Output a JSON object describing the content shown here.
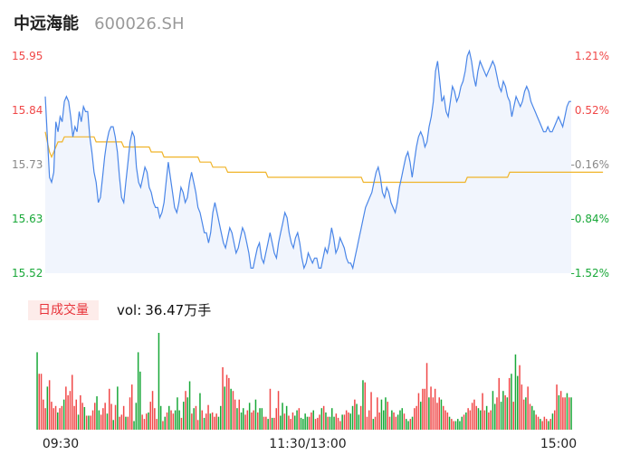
{
  "header": {
    "name": "中远海能",
    "code": "600026.SH"
  },
  "volume_panel": {
    "tag": "日成交量",
    "prefix": "vol:",
    "value": "36.47万手"
  },
  "colors": {
    "up": "#f04848",
    "down": "#18a838",
    "price_line": "#4a86e8",
    "avg_line": "#f0b429",
    "area": "#f1f5fd",
    "neutral": "#888888"
  },
  "chart_data": {
    "type": "line",
    "price_axis": [
      "15.95",
      "15.84",
      "15.73",
      "15.63",
      "15.52"
    ],
    "pct_axis": [
      "1.21%",
      "0.52%",
      "-0.16%",
      "-0.84%",
      "-1.52%"
    ],
    "ylim": [
      15.52,
      15.95
    ],
    "time_labels": [
      "09:30",
      "11:30/13:00",
      "15:00"
    ],
    "series": [
      {
        "values": [
          15.87,
          15.79,
          15.71,
          15.7,
          15.72,
          15.82,
          15.8,
          15.83,
          15.82,
          15.86,
          15.87,
          15.86,
          15.83,
          15.79,
          15.81,
          15.8,
          15.84,
          15.82,
          15.85,
          15.84,
          15.84,
          15.79,
          15.76,
          15.72,
          15.7,
          15.66,
          15.67,
          15.71,
          15.75,
          15.78,
          15.8,
          15.81,
          15.81,
          15.79,
          15.76,
          15.71,
          15.67,
          15.66,
          15.7,
          15.74,
          15.78,
          15.8,
          15.79,
          15.73,
          15.7,
          15.69,
          15.71,
          15.73,
          15.72,
          15.69,
          15.68,
          15.66,
          15.65,
          15.65,
          15.63,
          15.64,
          15.66,
          15.7,
          15.74,
          15.71,
          15.68,
          15.65,
          15.64,
          15.66,
          15.69,
          15.68,
          15.66,
          15.67,
          15.7,
          15.72,
          15.7,
          15.68,
          15.65,
          15.64,
          15.62,
          15.6,
          15.6,
          15.58,
          15.6,
          15.64,
          15.66,
          15.64,
          15.62,
          15.6,
          15.58,
          15.57,
          15.59,
          15.61,
          15.6,
          15.58,
          15.56,
          15.57,
          15.59,
          15.61,
          15.6,
          15.58,
          15.56,
          15.53,
          15.53,
          15.55,
          15.57,
          15.58,
          15.55,
          15.54,
          15.56,
          15.58,
          15.6,
          15.58,
          15.56,
          15.55,
          15.58,
          15.6,
          15.62,
          15.64,
          15.63,
          15.6,
          15.58,
          15.57,
          15.59,
          15.6,
          15.58,
          15.55,
          15.53,
          15.54,
          15.56,
          15.55,
          15.54,
          15.55,
          15.55,
          15.53,
          15.53,
          15.55,
          15.57,
          15.56,
          15.58,
          15.61,
          15.59,
          15.56,
          15.57,
          15.59,
          15.58,
          15.57,
          15.55,
          15.54,
          15.54,
          15.53,
          15.55,
          15.57,
          15.59,
          15.61,
          15.63,
          15.65,
          15.66,
          15.67,
          15.68,
          15.7,
          15.72,
          15.73,
          15.71,
          15.68,
          15.67,
          15.69,
          15.68,
          15.66,
          15.65,
          15.64,
          15.66,
          15.69,
          15.71,
          15.73,
          15.75,
          15.76,
          15.74,
          15.71,
          15.74,
          15.77,
          15.79,
          15.8,
          15.79,
          15.77,
          15.78,
          15.81,
          15.83,
          15.86,
          15.92,
          15.94,
          15.9,
          15.86,
          15.87,
          15.84,
          15.83,
          15.86,
          15.89,
          15.88,
          15.86,
          15.87,
          15.89,
          15.9,
          15.92,
          15.95,
          15.96,
          15.94,
          15.91,
          15.89,
          15.92,
          15.94,
          15.93,
          15.92,
          15.91,
          15.92,
          15.93,
          15.94,
          15.93,
          15.91,
          15.89,
          15.88,
          15.9,
          15.89,
          15.87,
          15.86,
          15.83,
          15.85,
          15.87,
          15.86,
          15.85,
          15.86,
          15.88,
          15.89,
          15.88,
          15.86,
          15.85,
          15.84,
          15.83,
          15.82,
          15.81,
          15.8,
          15.8,
          15.81,
          15.8,
          15.8,
          15.81,
          15.82,
          15.83,
          15.82,
          15.81,
          15.83,
          15.85,
          15.86,
          15.86
        ]
      },
      {
        "values": [
          15.8,
          15.78,
          15.76,
          15.75,
          15.76,
          15.77,
          15.78,
          15.78,
          15.78,
          15.79,
          15.79,
          15.79,
          15.79,
          15.79,
          15.79,
          15.79,
          15.79,
          15.79,
          15.79,
          15.79,
          15.79,
          15.79,
          15.79,
          15.79,
          15.78,
          15.78,
          15.78,
          15.78,
          15.78,
          15.78,
          15.78,
          15.78,
          15.78,
          15.78,
          15.78,
          15.78,
          15.78,
          15.77,
          15.77,
          15.77,
          15.77,
          15.77,
          15.77,
          15.77,
          15.77,
          15.77,
          15.77,
          15.77,
          15.77,
          15.77,
          15.76,
          15.76,
          15.76,
          15.76,
          15.76,
          15.76,
          15.75,
          15.75,
          15.75,
          15.75,
          15.75,
          15.75,
          15.75,
          15.75,
          15.75,
          15.75,
          15.75,
          15.75,
          15.75,
          15.75,
          15.75,
          15.75,
          15.75,
          15.74,
          15.74,
          15.74,
          15.74,
          15.74,
          15.74,
          15.73,
          15.73,
          15.73,
          15.73,
          15.73,
          15.73,
          15.73,
          15.72,
          15.72,
          15.72,
          15.72,
          15.72,
          15.72,
          15.72,
          15.72,
          15.72,
          15.72,
          15.72,
          15.72,
          15.72,
          15.72,
          15.72,
          15.72,
          15.72,
          15.72,
          15.72,
          15.71,
          15.71,
          15.71,
          15.71,
          15.71,
          15.71,
          15.71,
          15.71,
          15.71,
          15.71,
          15.71,
          15.71,
          15.71,
          15.71,
          15.71,
          15.71,
          15.71,
          15.71,
          15.71,
          15.71,
          15.71,
          15.71,
          15.71,
          15.71,
          15.71,
          15.71,
          15.71,
          15.71,
          15.71,
          15.71,
          15.71,
          15.71,
          15.71,
          15.71,
          15.71,
          15.71,
          15.71,
          15.71,
          15.71,
          15.71,
          15.71,
          15.71,
          15.71,
          15.71,
          15.71,
          15.7,
          15.7,
          15.7,
          15.7,
          15.7,
          15.7,
          15.7,
          15.7,
          15.7,
          15.7,
          15.7,
          15.7,
          15.7,
          15.7,
          15.7,
          15.7,
          15.7,
          15.7,
          15.7,
          15.7,
          15.7,
          15.7,
          15.7,
          15.7,
          15.7,
          15.7,
          15.7,
          15.7,
          15.7,
          15.7,
          15.7,
          15.7,
          15.7,
          15.7,
          15.7,
          15.7,
          15.7,
          15.7,
          15.7,
          15.7,
          15.7,
          15.7,
          15.7,
          15.7,
          15.7,
          15.7,
          15.7,
          15.7,
          15.7,
          15.71,
          15.71,
          15.71,
          15.71,
          15.71,
          15.71,
          15.71,
          15.71,
          15.71,
          15.71,
          15.71,
          15.71,
          15.71,
          15.71,
          15.71,
          15.71,
          15.71,
          15.71,
          15.71,
          15.71,
          15.72,
          15.72,
          15.72,
          15.72,
          15.72,
          15.72,
          15.72,
          15.72,
          15.72,
          15.72,
          15.72,
          15.72,
          15.72,
          15.72,
          15.72,
          15.72,
          15.72,
          15.72,
          15.72,
          15.72,
          15.72,
          15.72,
          15.72,
          15.72,
          15.72,
          15.72,
          15.72,
          15.72,
          15.72,
          15.72,
          15.72,
          15.72,
          15.72,
          15.72,
          15.72,
          15.72,
          15.72,
          15.72,
          15.72,
          15.72,
          15.72,
          15.72,
          15.72,
          15.72,
          15.72
        ]
      }
    ],
    "volume": [
      0.72,
      0.52,
      0.52,
      0.28,
      0.2,
      0.4,
      0.46,
      0.26,
      0.2,
      0.22,
      0.16,
      0.2,
      0.22,
      0.28,
      0.4,
      0.32,
      0.36,
      0.51,
      0.22,
      0.28,
      0.14,
      0.32,
      0.25,
      0.21,
      0.13,
      0.13,
      0.13,
      0.18,
      0.25,
      0.31,
      0.18,
      0.14,
      0.2,
      0.25,
      0.15,
      0.38,
      0.24,
      0.09,
      0.23,
      0.4,
      0.12,
      0.14,
      0.22,
      0.12,
      0.12,
      0.3,
      0.42,
      0.08,
      0.25,
      0.72,
      0.54,
      0.14,
      0.1,
      0.15,
      0.16,
      0.26,
      0.36,
      0.2,
      0.1,
      0.9,
      0.22,
      0.08,
      0.12,
      0.16,
      0.22,
      0.18,
      0.15,
      0.18,
      0.3,
      0.18,
      0.11,
      0.26,
      0.36,
      0.3,
      0.45,
      0.15,
      0.2,
      0.22,
      0.09,
      0.34,
      0.18,
      0.11,
      0.15,
      0.23,
      0.15,
      0.16,
      0.12,
      0.15,
      0.12,
      0.22,
      0.58,
      0.4,
      0.51,
      0.48,
      0.38,
      0.36,
      0.28,
      0.2,
      0.28,
      0.16,
      0.2,
      0.14,
      0.18,
      0.25,
      0.16,
      0.18,
      0.28,
      0.16,
      0.2,
      0.2,
      0.12,
      0.12,
      0.1,
      0.38,
      0.11,
      0.11,
      0.2,
      0.36,
      0.13,
      0.25,
      0.15,
      0.22,
      0.13,
      0.1,
      0.16,
      0.13,
      0.18,
      0.2,
      0.11,
      0.1,
      0.15,
      0.12,
      0.12,
      0.16,
      0.18,
      0.1,
      0.11,
      0.14,
      0.2,
      0.22,
      0.16,
      0.12,
      0.12,
      0.2,
      0.12,
      0.15,
      0.11,
      0.08,
      0.14,
      0.14,
      0.18,
      0.16,
      0.15,
      0.22,
      0.28,
      0.24,
      0.14,
      0.22,
      0.46,
      0.44,
      0.12,
      0.18,
      0.35,
      0.1,
      0.12,
      0.3,
      0.16,
      0.28,
      0.18,
      0.3,
      0.26,
      0.12,
      0.18,
      0.16,
      0.12,
      0.14,
      0.18,
      0.2,
      0.15,
      0.1,
      0.08,
      0.1,
      0.12,
      0.2,
      0.22,
      0.34,
      0.26,
      0.38,
      0.38,
      0.62,
      0.3,
      0.4,
      0.3,
      0.38,
      0.25,
      0.3,
      0.28,
      0.22,
      0.18,
      0.16,
      0.12,
      0.1,
      0.08,
      0.08,
      0.1,
      0.08,
      0.12,
      0.14,
      0.16,
      0.2,
      0.18,
      0.25,
      0.28,
      0.22,
      0.2,
      0.18,
      0.34,
      0.18,
      0.22,
      0.16,
      0.18,
      0.36,
      0.24,
      0.3,
      0.48,
      0.26,
      0.36,
      0.32,
      0.3,
      0.48,
      0.52,
      0.26,
      0.7,
      0.5,
      0.6,
      0.42,
      0.28,
      0.3,
      0.4,
      0.24,
      0.22,
      0.18,
      0.14,
      0.12,
      0.1,
      0.08,
      0.12,
      0.1,
      0.08,
      0.1,
      0.15,
      0.18,
      0.42,
      0.32,
      0.36,
      0.3,
      0.3,
      0.34,
      0.3,
      0.3
    ],
    "volume_up": [
      false,
      true,
      true,
      true,
      true,
      false,
      true,
      true,
      true,
      true,
      false,
      true,
      true,
      false,
      true,
      true,
      true,
      true,
      true,
      true,
      false,
      true,
      true,
      false,
      true,
      false,
      true,
      true,
      true,
      false,
      false,
      true,
      true,
      true,
      false,
      true,
      true,
      false,
      true,
      false,
      true,
      true,
      true,
      false,
      true,
      true,
      true,
      false,
      false,
      false,
      false,
      true,
      true,
      true,
      false,
      true,
      true,
      true,
      true,
      false,
      false,
      true,
      false,
      true,
      false,
      true,
      true,
      false,
      false,
      false,
      true,
      false,
      true,
      false,
      false,
      true,
      false,
      true,
      true,
      false,
      true,
      false,
      true,
      true,
      false,
      true,
      true,
      true,
      false,
      false,
      true,
      false,
      true,
      true,
      false,
      true,
      true,
      false,
      true,
      false,
      false,
      true,
      true,
      false,
      true,
      true,
      false,
      true,
      false,
      false,
      true,
      true,
      false,
      true,
      false,
      true,
      true,
      true,
      false,
      false,
      true,
      false,
      true,
      true,
      true,
      false,
      false,
      true,
      false,
      false,
      false,
      false,
      true,
      true,
      false,
      true,
      true,
      true,
      false,
      true,
      false,
      true,
      false,
      false,
      false,
      true,
      true,
      true,
      false,
      true,
      true,
      true,
      false,
      false,
      true,
      false,
      false,
      true,
      false,
      true,
      true,
      true,
      true,
      false,
      true,
      true,
      true,
      false,
      false,
      false,
      true,
      true,
      false,
      true,
      true,
      false,
      false,
      false,
      true,
      false,
      false,
      true,
      false,
      true,
      true,
      true,
      false,
      true,
      true,
      true,
      false,
      true,
      true,
      true,
      true,
      true,
      false,
      true,
      true,
      true,
      false,
      true,
      true,
      false,
      false,
      false,
      false,
      true,
      false,
      true,
      true,
      true,
      true,
      true,
      false,
      false,
      true,
      true,
      false,
      true,
      true,
      false,
      false,
      true,
      true,
      false,
      false,
      true,
      false,
      true,
      false,
      true,
      false,
      false,
      true,
      true,
      true,
      false,
      true,
      true,
      false,
      false,
      true,
      true,
      false,
      true,
      true,
      true,
      false,
      true,
      false,
      true,
      true,
      false,
      true,
      true,
      true,
      false,
      true,
      false,
      true,
      false
    ]
  }
}
